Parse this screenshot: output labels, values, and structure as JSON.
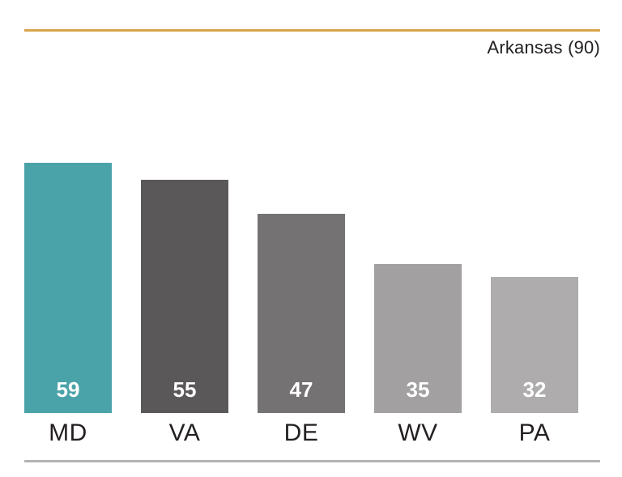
{
  "chart_data": {
    "type": "bar",
    "categories": [
      "MD",
      "VA",
      "DE",
      "WV",
      "PA"
    ],
    "values": [
      59,
      55,
      47,
      35,
      32
    ],
    "bar_colors": [
      "#4aa3a9",
      "#5b5859",
      "#757273",
      "#a2a0a1",
      "#aeacad"
    ],
    "reference_label": "Arkansas (90)",
    "reference_value": 90,
    "ylim": [
      0,
      90
    ],
    "title": "",
    "xlabel": "",
    "ylabel": "",
    "grid": false,
    "legend_position": "none",
    "value_label_color": "#ffffff",
    "category_label_color": "#231f20",
    "reference_line_color": "#d9a54b",
    "baseline_rule_color": "#b5b3b4"
  }
}
